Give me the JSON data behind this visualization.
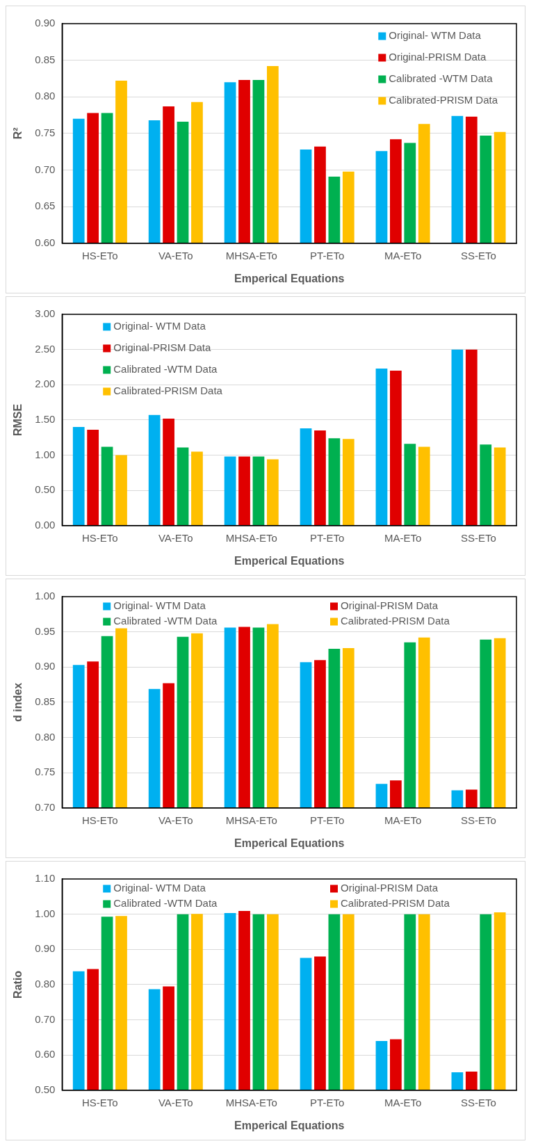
{
  "chart_data": [
    {
      "type": "bar",
      "ylabel": "R²",
      "xlabel": "Emperical Equations",
      "categories": [
        "HS-ETo",
        "VA-ETo",
        "MHSA-ETo",
        "PT-ETo",
        "MA-ETo",
        "SS-ETo"
      ],
      "ylim": [
        0.6,
        0.9
      ],
      "yticks": [
        {
          "value": 0.6,
          "label": "0.60"
        },
        {
          "value": 0.65,
          "label": "0.65"
        },
        {
          "value": 0.7,
          "label": "0.70"
        },
        {
          "value": 0.75,
          "label": "0.75"
        },
        {
          "value": 0.8,
          "label": "0.80"
        },
        {
          "value": 0.85,
          "label": "0.85"
        },
        {
          "value": 0.9,
          "label": "0.90"
        }
      ],
      "grid": "y",
      "legend": "top right",
      "series": [
        {
          "name": "Original- WTM Data",
          "color": "#00b0f0",
          "values": [
            0.77,
            0.768,
            0.82,
            0.728,
            0.726,
            0.774
          ]
        },
        {
          "name": "Original-PRISM Data",
          "color": "#e00000",
          "values": [
            0.778,
            0.787,
            0.823,
            0.732,
            0.742,
            0.773
          ]
        },
        {
          "name": "Calibrated -WTM Data",
          "color": "#00b050",
          "values": [
            0.778,
            0.766,
            0.823,
            0.691,
            0.737,
            0.747
          ]
        },
        {
          "name": "Calibrated-PRISM Data",
          "color": "#ffc000",
          "values": [
            0.822,
            0.793,
            0.842,
            0.698,
            0.763,
            0.752
          ]
        }
      ]
    },
    {
      "type": "bar",
      "ylabel": "RMSE",
      "xlabel": "Emperical Equations",
      "categories": [
        "HS-ETo",
        "VA-ETo",
        "MHSA-ETo",
        "PT-ETo",
        "MA-ETo",
        "SS-ETo"
      ],
      "ylim": [
        0,
        3
      ],
      "yticks": [
        {
          "value": 0,
          "label": "0.00"
        },
        {
          "value": 0.5,
          "label": "0.50"
        },
        {
          "value": 1,
          "label": "1.00"
        },
        {
          "value": 1.5,
          "label": "1.50"
        },
        {
          "value": 2,
          "label": "2.00"
        },
        {
          "value": 2.5,
          "label": "2.50"
        },
        {
          "value": 3,
          "label": "3.00"
        }
      ],
      "grid": "y",
      "legend": "top left",
      "series": [
        {
          "name": "Original- WTM Data",
          "color": "#00b0f0",
          "values": [
            1.4,
            1.57,
            0.98,
            1.38,
            2.23,
            2.5
          ]
        },
        {
          "name": "Original-PRISM Data",
          "color": "#e00000",
          "values": [
            1.36,
            1.52,
            0.98,
            1.35,
            2.2,
            2.5
          ]
        },
        {
          "name": "Calibrated -WTM Data",
          "color": "#00b050",
          "values": [
            1.12,
            1.11,
            0.98,
            1.24,
            1.16,
            1.15
          ]
        },
        {
          "name": "Calibrated-PRISM Data",
          "color": "#ffc000",
          "values": [
            1.0,
            1.05,
            0.94,
            1.23,
            1.12,
            1.11
          ]
        }
      ]
    },
    {
      "type": "bar",
      "ylabel": "d index",
      "xlabel": "Emperical Equations",
      "categories": [
        "HS-ETo",
        "VA-ETo",
        "MHSA-ETo",
        "PT-ETo",
        "MA-ETo",
        "SS-ETo"
      ],
      "ylim": [
        0.7,
        1.0
      ],
      "yticks": [
        {
          "value": 0.7,
          "label": "0.70"
        },
        {
          "value": 0.75,
          "label": "0.75"
        },
        {
          "value": 0.8,
          "label": "0.80"
        },
        {
          "value": 0.85,
          "label": "0.85"
        },
        {
          "value": 0.9,
          "label": "0.90"
        },
        {
          "value": 0.95,
          "label": "0.95"
        },
        {
          "value": 1.0,
          "label": "1.00"
        }
      ],
      "grid": "y",
      "legend": "top",
      "series": [
        {
          "name": "Original- WTM Data",
          "color": "#00b0f0",
          "values": [
            0.903,
            0.869,
            0.956,
            0.907,
            0.734,
            0.725
          ]
        },
        {
          "name": "Original-PRISM Data",
          "color": "#e00000",
          "values": [
            0.908,
            0.877,
            0.957,
            0.91,
            0.739,
            0.726
          ]
        },
        {
          "name": "Calibrated -WTM Data",
          "color": "#00b050",
          "values": [
            0.944,
            0.943,
            0.956,
            0.926,
            0.935,
            0.939
          ]
        },
        {
          "name": "Calibrated-PRISM Data",
          "color": "#ffc000",
          "values": [
            0.955,
            0.948,
            0.961,
            0.927,
            0.942,
            0.941
          ]
        }
      ]
    },
    {
      "type": "bar",
      "ylabel": "Ratio",
      "xlabel": "Emperical Equations",
      "categories": [
        "HS-ETo",
        "VA-ETo",
        "MHSA-ETo",
        "PT-ETo",
        "MA-ETo",
        "SS-ETo"
      ],
      "ylim": [
        0.5,
        1.1
      ],
      "yticks": [
        {
          "value": 0.5,
          "label": "0.50"
        },
        {
          "value": 0.6,
          "label": "0.60"
        },
        {
          "value": 0.7,
          "label": "0.70"
        },
        {
          "value": 0.8,
          "label": "0.80"
        },
        {
          "value": 0.9,
          "label": "0.90"
        },
        {
          "value": 1.0,
          "label": "1.00"
        },
        {
          "value": 1.1,
          "label": "1.10"
        }
      ],
      "grid": "y",
      "legend": "top",
      "series": [
        {
          "name": "Original- WTM Data",
          "color": "#00b0f0",
          "values": [
            0.838,
            0.787,
            1.003,
            0.876,
            0.64,
            0.551
          ]
        },
        {
          "name": "Original-PRISM Data",
          "color": "#e00000",
          "values": [
            0.844,
            0.795,
            1.009,
            0.88,
            0.645,
            0.553
          ]
        },
        {
          "name": "Calibrated -WTM Data",
          "color": "#00b050",
          "values": [
            0.993,
            1.0,
            1.0,
            1.0,
            1.0,
            1.0
          ]
        },
        {
          "name": "Calibrated-PRISM Data",
          "color": "#ffc000",
          "values": [
            0.995,
            1.001,
            1.0,
            1.0,
            1.0,
            1.005
          ]
        }
      ]
    }
  ]
}
